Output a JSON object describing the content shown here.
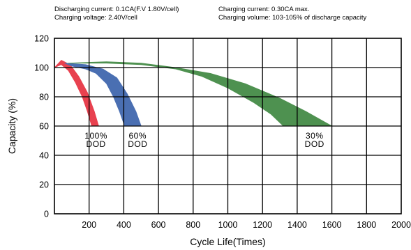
{
  "notes": {
    "discharging_current": "Discharging current: 0.1CA(F.V 1.80V/cell)",
    "charging_current": "Charging current: 0.30CA max.",
    "charging_voltage": "Charging voltage: 2.40V/cell",
    "charging_volume": "Charging volume: 103-105% of discharge capacity"
  },
  "chart_data": {
    "type": "area",
    "xlabel": "Cycle Life(Times)",
    "ylabel": "Capacity (%)",
    "xlim": [
      0,
      2000
    ],
    "ylim": [
      0,
      120
    ],
    "x_ticks": [
      "200",
      "400",
      "600",
      "800",
      "1000",
      "1200",
      "1400",
      "1600",
      "1800",
      "2000"
    ],
    "y_ticks": [
      "0",
      "20",
      "40",
      "60",
      "80",
      "100",
      "120"
    ],
    "grid": true,
    "series": [
      {
        "color": "#e8414f",
        "label_lines": [
          "100%",
          "DOD"
        ],
        "upper": [
          [
            0,
            100
          ],
          [
            40,
            105
          ],
          [
            90,
            102
          ],
          [
            140,
            94
          ],
          [
            190,
            83
          ],
          [
            230,
            70
          ],
          [
            255,
            60
          ]
        ],
        "lower": [
          [
            0,
            100
          ],
          [
            40,
            102
          ],
          [
            80,
            98
          ],
          [
            120,
            90
          ],
          [
            160,
            80
          ],
          [
            190,
            70
          ],
          [
            215,
            60
          ]
        ]
      },
      {
        "color": "#4a6fb2",
        "label_lines": [
          "60%",
          "DOD"
        ],
        "upper": [
          [
            60,
            103
          ],
          [
            180,
            102
          ],
          [
            280,
            99
          ],
          [
            360,
            93
          ],
          [
            420,
            82
          ],
          [
            470,
            70
          ],
          [
            500,
            60
          ]
        ],
        "lower": [
          [
            100,
            101
          ],
          [
            180,
            99
          ],
          [
            240,
            96
          ],
          [
            300,
            89
          ],
          [
            340,
            80
          ],
          [
            375,
            70
          ],
          [
            405,
            60
          ]
        ]
      },
      {
        "color": "#4e9150",
        "label_lines": [
          "30%",
          "DOD"
        ],
        "upper": [
          [
            80,
            103
          ],
          [
            300,
            104
          ],
          [
            500,
            103
          ],
          [
            700,
            100
          ],
          [
            900,
            96
          ],
          [
            1100,
            89
          ],
          [
            1300,
            79
          ],
          [
            1450,
            70
          ],
          [
            1600,
            60
          ]
        ],
        "lower": [
          [
            80,
            103
          ],
          [
            300,
            103
          ],
          [
            500,
            102
          ],
          [
            700,
            99
          ],
          [
            850,
            94
          ],
          [
            1000,
            86
          ],
          [
            1150,
            76
          ],
          [
            1250,
            68
          ],
          [
            1320,
            60
          ]
        ]
      }
    ]
  }
}
